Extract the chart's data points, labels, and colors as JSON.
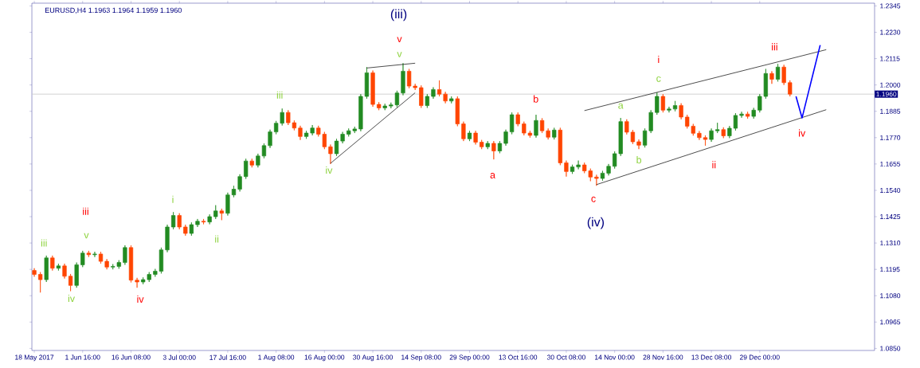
{
  "chart_data": {
    "type": "candlestick",
    "title": "EURUSD,H4  1.1963 1.1964 1.1959 1.1960",
    "categories": [
      "18 May 2017",
      null,
      null,
      null,
      null,
      null,
      null,
      null,
      "1 Jun 16:00",
      null,
      null,
      null,
      null,
      null,
      null,
      null,
      "16 Jun 08:00",
      null,
      null,
      null,
      null,
      null,
      null,
      null,
      "3 Jul 00:00",
      null,
      null,
      null,
      null,
      null,
      null,
      null,
      "17 Jul 16:00",
      null,
      null,
      null,
      null,
      null,
      null,
      null,
      "1 Aug 08:00",
      null,
      null,
      null,
      null,
      null,
      null,
      null,
      "16 Aug 00:00",
      null,
      null,
      null,
      null,
      null,
      null,
      null,
      "30 Aug 16:00",
      null,
      null,
      null,
      null,
      null,
      null,
      null,
      "14 Sep 08:00",
      null,
      null,
      null,
      null,
      null,
      null,
      null,
      "29 Sep 00:00",
      null,
      null,
      null,
      null,
      null,
      null,
      null,
      "13 Oct 16:00",
      null,
      null,
      null,
      null,
      null,
      null,
      null,
      "30 Oct 08:00",
      null,
      null,
      null,
      null,
      null,
      null,
      null,
      "14 Nov 00:00",
      null,
      null,
      null,
      null,
      null,
      null,
      null,
      "28 Nov 16:00",
      null,
      null,
      null,
      null,
      null,
      null,
      null,
      "13 Dec 08:00",
      null,
      null,
      null,
      null,
      null,
      null,
      null,
      "29 Dec 00:00",
      null,
      null,
      null,
      null,
      null,
      null,
      null,
      null,
      null,
      null,
      null,
      null,
      null,
      null,
      null,
      null,
      null,
      null,
      null
    ],
    "ohlc": [
      [
        1.119,
        1.12,
        1.1163,
        1.1173
      ],
      [
        1.1173,
        1.1183,
        1.1094,
        1.115
      ],
      [
        1.115,
        1.1255,
        1.114,
        1.1245
      ],
      [
        1.1245,
        1.1255,
        1.119,
        1.12
      ],
      [
        1.12,
        1.122,
        1.119,
        1.121
      ],
      [
        1.121,
        1.122,
        1.1155,
        1.1165
      ],
      [
        1.1165,
        1.1175,
        1.11,
        1.1125
      ],
      [
        1.1125,
        1.1225,
        1.1115,
        1.1215
      ],
      [
        1.1215,
        1.1276,
        1.1205,
        1.1266
      ],
      [
        1.1266,
        1.1276,
        1.1249,
        1.1259
      ],
      [
        1.1259,
        1.1272,
        1.1249,
        1.1262
      ],
      [
        1.1262,
        1.1272,
        1.122,
        1.123
      ],
      [
        1.123,
        1.124,
        1.1195,
        1.1205
      ],
      [
        1.1205,
        1.1218,
        1.1195,
        1.1208
      ],
      [
        1.1208,
        1.1235,
        1.1198,
        1.1225
      ],
      [
        1.1225,
        1.13,
        1.1215,
        1.129
      ],
      [
        1.129,
        1.13,
        1.1138,
        1.1148
      ],
      [
        1.1148,
        1.1158,
        1.1115,
        1.114
      ],
      [
        1.114,
        1.116,
        1.113,
        1.115
      ],
      [
        1.115,
        1.1183,
        1.114,
        1.1173
      ],
      [
        1.1173,
        1.1197,
        1.1163,
        1.1187
      ],
      [
        1.1187,
        1.129,
        1.1177,
        1.128
      ],
      [
        1.128,
        1.139,
        1.127,
        1.138
      ],
      [
        1.138,
        1.1445,
        1.137,
        1.143
      ],
      [
        1.143,
        1.144,
        1.137,
        1.138
      ],
      [
        1.138,
        1.139,
        1.1342,
        1.1352
      ],
      [
        1.1352,
        1.14,
        1.1342,
        1.139
      ],
      [
        1.139,
        1.1415,
        1.138,
        1.1405
      ],
      [
        1.1405,
        1.1415,
        1.1392,
        1.1402
      ],
      [
        1.1402,
        1.1435,
        1.1392,
        1.1425
      ],
      [
        1.1425,
        1.1475,
        1.1415,
        1.145
      ],
      [
        1.145,
        1.146,
        1.141,
        1.144
      ],
      [
        1.144,
        1.153,
        1.143,
        1.152
      ],
      [
        1.152,
        1.156,
        1.151,
        1.1545
      ],
      [
        1.1545,
        1.161,
        1.1535,
        1.16
      ],
      [
        1.16,
        1.1678,
        1.159,
        1.1668
      ],
      [
        1.1668,
        1.1678,
        1.164,
        1.165
      ],
      [
        1.165,
        1.17,
        1.164,
        1.169
      ],
      [
        1.169,
        1.1745,
        1.168,
        1.1735
      ],
      [
        1.1735,
        1.1805,
        1.1725,
        1.1795
      ],
      [
        1.1795,
        1.1843,
        1.1785,
        1.1833
      ],
      [
        1.1833,
        1.1897,
        1.1823,
        1.188
      ],
      [
        1.188,
        1.189,
        1.1825,
        1.1835
      ],
      [
        1.1835,
        1.1845,
        1.1802,
        1.1812
      ],
      [
        1.1812,
        1.1822,
        1.176,
        1.1775
      ],
      [
        1.1775,
        1.18,
        1.1765,
        1.179
      ],
      [
        1.179,
        1.1825,
        1.178,
        1.1812
      ],
      [
        1.1812,
        1.1822,
        1.1775,
        1.1785
      ],
      [
        1.1785,
        1.1795,
        1.172,
        1.173
      ],
      [
        1.173,
        1.174,
        1.1655,
        1.17
      ],
      [
        1.17,
        1.1765,
        1.169,
        1.1755
      ],
      [
        1.1755,
        1.1795,
        1.1745,
        1.1785
      ],
      [
        1.1785,
        1.181,
        1.1775,
        1.18
      ],
      [
        1.18,
        1.1818,
        1.179,
        1.1808
      ],
      [
        1.1808,
        1.196,
        1.1798,
        1.195
      ],
      [
        1.195,
        1.2078,
        1.194,
        1.2053
      ],
      [
        1.2053,
        1.2063,
        1.1905,
        1.1915
      ],
      [
        1.1915,
        1.1925,
        1.189,
        1.19
      ],
      [
        1.19,
        1.1918,
        1.189,
        1.1908
      ],
      [
        1.1908,
        1.1923,
        1.1898,
        1.1913
      ],
      [
        1.1913,
        1.1975,
        1.1903,
        1.1965
      ],
      [
        1.1965,
        1.2095,
        1.1955,
        1.206
      ],
      [
        1.206,
        1.207,
        1.1985,
        1.1995
      ],
      [
        1.1995,
        1.2005,
        1.1978,
        1.1988
      ],
      [
        1.1988,
        1.1998,
        1.19,
        1.191
      ],
      [
        1.191,
        1.196,
        1.19,
        1.195
      ],
      [
        1.195,
        1.199,
        1.194,
        1.198
      ],
      [
        1.198,
        1.202,
        1.195,
        1.196
      ],
      [
        1.196,
        1.197,
        1.192,
        1.193
      ],
      [
        1.193,
        1.195,
        1.192,
        1.194
      ],
      [
        1.194,
        1.195,
        1.182,
        1.183
      ],
      [
        1.183,
        1.184,
        1.1755,
        1.1765
      ],
      [
        1.1765,
        1.18,
        1.1755,
        1.179
      ],
      [
        1.179,
        1.18,
        1.174,
        1.175
      ],
      [
        1.175,
        1.176,
        1.172,
        1.173
      ],
      [
        1.173,
        1.1755,
        1.172,
        1.1745
      ],
      [
        1.1745,
        1.1755,
        1.1675,
        1.1712
      ],
      [
        1.1712,
        1.1755,
        1.1702,
        1.1745
      ],
      [
        1.1745,
        1.1805,
        1.1735,
        1.1795
      ],
      [
        1.1795,
        1.188,
        1.1785,
        1.187
      ],
      [
        1.187,
        1.188,
        1.182,
        1.183
      ],
      [
        1.183,
        1.184,
        1.178,
        1.179
      ],
      [
        1.179,
        1.18,
        1.177,
        1.178
      ],
      [
        1.178,
        1.187,
        1.177,
        1.1845
      ],
      [
        1.1845,
        1.1855,
        1.179,
        1.18
      ],
      [
        1.18,
        1.181,
        1.1762,
        1.1772
      ],
      [
        1.1772,
        1.1813,
        1.1762,
        1.1803
      ],
      [
        1.1803,
        1.1813,
        1.165,
        1.166
      ],
      [
        1.166,
        1.167,
        1.16,
        1.1622
      ],
      [
        1.1622,
        1.1652,
        1.1612,
        1.1642
      ],
      [
        1.1642,
        1.167,
        1.1632,
        1.1651
      ],
      [
        1.1651,
        1.1661,
        1.1615,
        1.1625
      ],
      [
        1.1625,
        1.1635,
        1.158,
        1.1598
      ],
      [
        1.1598,
        1.1608,
        1.156,
        1.1592
      ],
      [
        1.1592,
        1.1625,
        1.1582,
        1.1615
      ],
      [
        1.1615,
        1.1655,
        1.1605,
        1.1645
      ],
      [
        1.1645,
        1.171,
        1.1635,
        1.17
      ],
      [
        1.17,
        1.1856,
        1.169,
        1.184
      ],
      [
        1.184,
        1.185,
        1.1784,
        1.1794
      ],
      [
        1.1794,
        1.1804,
        1.1742,
        1.1752
      ],
      [
        1.1752,
        1.1762,
        1.172,
        1.1737
      ],
      [
        1.1737,
        1.181,
        1.1727,
        1.18
      ],
      [
        1.18,
        1.189,
        1.179,
        1.188
      ],
      [
        1.188,
        1.1967,
        1.187,
        1.195
      ],
      [
        1.195,
        1.196,
        1.188,
        1.189
      ],
      [
        1.189,
        1.1905,
        1.188,
        1.1895
      ],
      [
        1.1895,
        1.193,
        1.1885,
        1.191
      ],
      [
        1.191,
        1.192,
        1.185,
        1.186
      ],
      [
        1.186,
        1.187,
        1.181,
        1.182
      ],
      [
        1.182,
        1.183,
        1.1779,
        1.1789
      ],
      [
        1.1789,
        1.1799,
        1.176,
        1.177
      ],
      [
        1.177,
        1.178,
        1.1735,
        1.1762
      ],
      [
        1.1762,
        1.181,
        1.1752,
        1.18
      ],
      [
        1.18,
        1.1835,
        1.179,
        1.1805
      ],
      [
        1.1805,
        1.1815,
        1.1768,
        1.1778
      ],
      [
        1.1778,
        1.1821,
        1.1768,
        1.1811
      ],
      [
        1.1811,
        1.1877,
        1.1801,
        1.1867
      ],
      [
        1.1867,
        1.1883,
        1.1857,
        1.1873
      ],
      [
        1.1873,
        1.1883,
        1.1853,
        1.1863
      ],
      [
        1.1863,
        1.19,
        1.1853,
        1.189
      ],
      [
        1.189,
        1.196,
        1.188,
        1.195
      ],
      [
        1.195,
        1.207,
        1.194,
        1.205
      ],
      [
        1.205,
        1.206,
        1.2005,
        1.2025
      ],
      [
        1.2025,
        1.2092,
        1.2015,
        1.2078
      ],
      [
        1.2078,
        1.2088,
        1.2,
        1.201
      ],
      [
        1.201,
        1.202,
        1.195,
        1.196
      ],
      null,
      null,
      null,
      null,
      null,
      null,
      null,
      null,
      null,
      null,
      null,
      null,
      null,
      null
    ],
    "colors": [
      "#ff4500",
      "#ff4500",
      "#228b22",
      "#ff4500",
      "#228b22",
      "#ff4500",
      "#ff4500",
      "#228b22",
      "#228b22",
      "#ff4500",
      "#228b22",
      "#ff4500",
      "#ff4500",
      "#228b22",
      "#228b22",
      "#228b22",
      "#ff4500",
      "#ff4500",
      "#228b22",
      "#228b22",
      "#228b22",
      "#228b22",
      "#228b22",
      "#228b22",
      "#ff4500",
      "#ff4500",
      "#228b22",
      "#228b22",
      "#ff4500",
      "#228b22",
      "#228b22",
      "#ff4500",
      "#228b22",
      "#228b22",
      "#228b22",
      "#228b22",
      "#ff4500",
      "#228b22",
      "#228b22",
      "#228b22",
      "#228b22",
      "#228b22",
      "#ff4500",
      "#ff4500",
      "#ff4500",
      "#228b22",
      "#228b22",
      "#ff4500",
      "#ff4500",
      "#ff4500",
      "#228b22",
      "#228b22",
      "#228b22",
      "#228b22",
      "#228b22",
      "#228b22",
      "#ff4500",
      "#ff4500",
      "#228b22",
      "#228b22",
      "#228b22",
      "#228b22",
      "#ff4500",
      "#ff4500",
      "#ff4500",
      "#228b22",
      "#228b22",
      "#ff4500",
      "#ff4500",
      "#228b22",
      "#ff4500",
      "#ff4500",
      "#228b22",
      "#ff4500",
      "#ff4500",
      "#228b22",
      "#ff4500",
      "#228b22",
      "#228b22",
      "#228b22",
      "#ff4500",
      "#ff4500",
      "#ff4500",
      "#228b22",
      "#ff4500",
      "#ff4500",
      "#228b22",
      "#ff4500",
      "#ff4500",
      "#228b22",
      "#228b22",
      "#ff4500",
      "#ff4500",
      "#ff4500",
      "#228b22",
      "#228b22",
      "#228b22",
      "#228b22",
      "#ff4500",
      "#ff4500",
      "#ff4500",
      "#228b22",
      "#228b22",
      "#228b22",
      "#ff4500",
      "#228b22",
      "#228b22",
      "#ff4500",
      "#ff4500",
      "#ff4500",
      "#ff4500",
      "#ff4500",
      "#228b22",
      "#228b22",
      "#ff4500",
      "#228b22",
      "#228b22",
      "#228b22",
      "#ff4500",
      "#228b22",
      "#228b22",
      "#228b22",
      "#ff4500",
      "#228b22",
      "#ff4500",
      "#ff4500",
      null,
      null,
      null,
      null,
      null,
      null,
      null,
      null,
      null,
      null,
      null,
      null,
      null,
      null
    ],
    "series": [
      {
        "type": "line",
        "color": "#000000",
        "values": [
          null,
          null,
          null,
          null,
          null,
          null,
          null,
          null,
          null,
          null,
          null,
          null,
          null,
          null,
          null,
          null,
          null,
          null,
          null,
          null,
          null,
          null,
          null,
          null,
          null,
          null,
          null,
          null,
          null,
          null,
          null,
          null,
          null,
          null,
          null,
          null,
          null,
          null,
          null,
          null,
          null,
          null,
          null,
          null,
          null,
          null,
          null,
          null,
          null,
          1.1658,
          null,
          null,
          null,
          null,
          null,
          null,
          null,
          null,
          null,
          null,
          null,
          null,
          null,
          1.1966,
          null,
          null,
          null,
          null,
          null,
          null,
          null,
          null,
          null,
          null,
          null,
          null,
          null,
          null,
          null,
          null,
          null,
          null,
          null,
          null,
          null,
          null,
          null,
          null,
          null,
          null,
          null,
          null,
          null,
          null,
          null,
          null,
          null,
          null,
          null,
          null,
          null,
          null,
          null,
          null,
          null,
          null,
          null,
          null,
          null,
          null,
          null,
          null,
          null,
          null,
          null,
          null,
          null,
          null,
          null,
          null,
          null,
          null,
          null,
          null,
          null,
          null,
          null,
          null,
          null,
          null,
          null,
          null,
          null,
          null,
          null,
          null,
          null,
          null,
          null,
          null
        ]
      },
      {
        "type": "line",
        "color": "#000000",
        "values": [
          null,
          null,
          null,
          null,
          null,
          null,
          null,
          null,
          null,
          null,
          null,
          null,
          null,
          null,
          null,
          null,
          null,
          null,
          null,
          null,
          null,
          null,
          null,
          null,
          null,
          null,
          null,
          null,
          null,
          null,
          null,
          null,
          null,
          null,
          null,
          null,
          null,
          null,
          null,
          null,
          null,
          null,
          null,
          null,
          null,
          null,
          null,
          null,
          null,
          null,
          null,
          null,
          null,
          null,
          null,
          1.2074,
          null,
          null,
          null,
          null,
          null,
          null,
          null,
          1.2095,
          null,
          null,
          null,
          null,
          null,
          null,
          null,
          null,
          null,
          null,
          null,
          null,
          null,
          null,
          null,
          null,
          null,
          null,
          null,
          null,
          null,
          null,
          null,
          null,
          null,
          null,
          null,
          null,
          null,
          null,
          null,
          null,
          null,
          null,
          null,
          null,
          null,
          null,
          null,
          null,
          null,
          null,
          null,
          null,
          null,
          null,
          null,
          null,
          null,
          null,
          null,
          null,
          null,
          null,
          null,
          null,
          null,
          null,
          null,
          null,
          null,
          null,
          null,
          null,
          null,
          null,
          null,
          null,
          null,
          null,
          null,
          null,
          null,
          null,
          null,
          null
        ]
      },
      {
        "type": "line",
        "color": "#000000",
        "values": [
          null,
          null,
          null,
          null,
          null,
          null,
          null,
          null,
          null,
          null,
          null,
          null,
          null,
          null,
          null,
          null,
          null,
          null,
          null,
          null,
          null,
          null,
          null,
          null,
          null,
          null,
          null,
          null,
          null,
          null,
          null,
          null,
          null,
          null,
          null,
          null,
          null,
          null,
          null,
          null,
          null,
          null,
          null,
          null,
          null,
          null,
          null,
          null,
          null,
          null,
          null,
          null,
          null,
          null,
          null,
          null,
          null,
          null,
          null,
          null,
          null,
          null,
          null,
          null,
          null,
          null,
          null,
          null,
          null,
          null,
          null,
          null,
          null,
          null,
          null,
          null,
          null,
          null,
          null,
          null,
          null,
          null,
          null,
          null,
          null,
          null,
          null,
          null,
          null,
          null,
          null,
          1.1888,
          null,
          null,
          null,
          null,
          null,
          null,
          null,
          null,
          null,
          null,
          null,
          null,
          null,
          null,
          null,
          null,
          null,
          null,
          null,
          null,
          null,
          null,
          null,
          null,
          null,
          null,
          null,
          null,
          null,
          null,
          null,
          null,
          null,
          null,
          null,
          null,
          null,
          null,
          null,
          1.2154,
          null,
          null,
          null,
          null,
          null,
          null,
          null,
          null
        ]
      },
      {
        "type": "line",
        "color": "#000000",
        "values": [
          null,
          null,
          null,
          null,
          null,
          null,
          null,
          null,
          null,
          null,
          null,
          null,
          null,
          null,
          null,
          null,
          null,
          null,
          null,
          null,
          null,
          null,
          null,
          null,
          null,
          null,
          null,
          null,
          null,
          null,
          null,
          null,
          null,
          null,
          null,
          null,
          null,
          null,
          null,
          null,
          null,
          null,
          null,
          null,
          null,
          null,
          null,
          null,
          null,
          null,
          null,
          null,
          null,
          null,
          null,
          null,
          null,
          null,
          null,
          null,
          null,
          null,
          null,
          null,
          null,
          null,
          null,
          null,
          null,
          null,
          null,
          null,
          null,
          null,
          null,
          null,
          null,
          null,
          null,
          null,
          null,
          null,
          null,
          null,
          null,
          null,
          null,
          null,
          null,
          null,
          null,
          null,
          null,
          1.1565,
          null,
          null,
          null,
          null,
          null,
          null,
          null,
          null,
          null,
          null,
          null,
          null,
          null,
          null,
          null,
          null,
          null,
          null,
          null,
          null,
          null,
          null,
          null,
          null,
          null,
          null,
          null,
          null,
          null,
          null,
          null,
          null,
          null,
          null,
          null,
          null,
          null,
          1.1892,
          null,
          null,
          null,
          null,
          null,
          null,
          null,
          null
        ]
      },
      {
        "type": "line",
        "color": "#0000ff",
        "values": [
          null,
          null,
          null,
          null,
          null,
          null,
          null,
          null,
          null,
          null,
          null,
          null,
          null,
          null,
          null,
          null,
          null,
          null,
          null,
          null,
          null,
          null,
          null,
          null,
          null,
          null,
          null,
          null,
          null,
          null,
          null,
          null,
          null,
          null,
          null,
          null,
          null,
          null,
          null,
          null,
          null,
          null,
          null,
          null,
          null,
          null,
          null,
          null,
          null,
          null,
          null,
          null,
          null,
          null,
          null,
          null,
          null,
          null,
          null,
          null,
          null,
          null,
          null,
          null,
          null,
          null,
          null,
          null,
          null,
          null,
          null,
          null,
          null,
          null,
          null,
          null,
          null,
          null,
          null,
          null,
          null,
          null,
          null,
          null,
          null,
          null,
          null,
          null,
          null,
          null,
          null,
          null,
          null,
          null,
          null,
          null,
          null,
          null,
          null,
          null,
          null,
          null,
          null,
          null,
          null,
          null,
          null,
          null,
          null,
          null,
          null,
          null,
          null,
          null,
          null,
          null,
          null,
          null,
          null,
          null,
          null,
          null,
          null,
          null,
          null,
          null,
          1.195,
          1.1856,
          null,
          null,
          1.2174,
          null,
          null,
          null,
          null,
          null,
          null,
          null,
          null,
          null
        ]
      }
    ],
    "ref_lines": [
      {
        "axis": "y",
        "value": 1.196,
        "label": "1.1960",
        "color": "#c8c8c8"
      }
    ],
    "ylim": [
      1.0841,
      1.2357
    ],
    "yticks": [
      {
        "value": 1.085,
        "label": "1.0850"
      },
      {
        "value": 1.0965,
        "label": "1.0965"
      },
      {
        "value": 1.108,
        "label": "1.1080"
      },
      {
        "value": 1.1195,
        "label": "1.1195"
      },
      {
        "value": 1.131,
        "label": "1.1310"
      },
      {
        "value": 1.1425,
        "label": "1.1425"
      },
      {
        "value": 1.154,
        "label": "1.1540"
      },
      {
        "value": 1.1655,
        "label": "1.1655"
      },
      {
        "value": 1.177,
        "label": "1.1770"
      },
      {
        "value": 1.1885,
        "label": "1.1885"
      },
      {
        "value": 1.2,
        "label": "1.2000"
      },
      {
        "value": 1.2115,
        "label": "1.2115"
      },
      {
        "value": 1.223,
        "label": "1.2230"
      },
      {
        "value": 1.2345,
        "label": "1.2345"
      }
    ],
    "annotations": [
      "(iii)",
      "v",
      "v",
      "iii",
      "iv",
      "iii",
      "v",
      "iii",
      "iv",
      "iv",
      "i",
      "ii",
      "a",
      "b",
      "c",
      "(iv)",
      "a",
      "b",
      "c",
      "i",
      "ii",
      "iii",
      "iv"
    ]
  }
}
